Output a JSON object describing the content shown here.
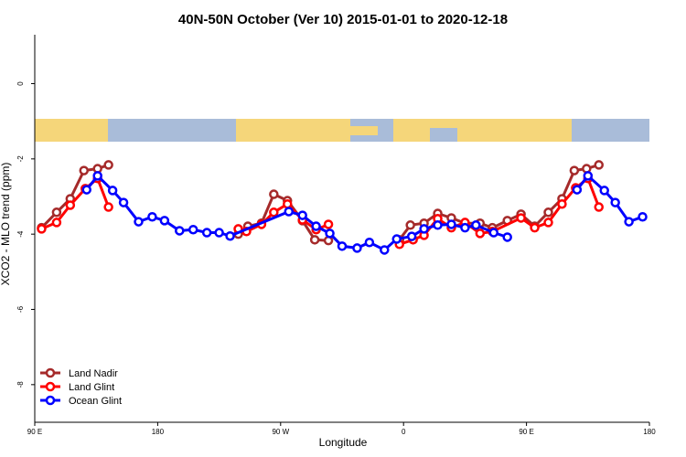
{
  "chart_data": {
    "type": "line",
    "title": "40N-50N October (Ver 10)   2015-01-01 to 2020-12-18",
    "xlabel": "Longitude",
    "ylabel": "XCO2 - MLO trend (ppm)",
    "xlim": [
      90,
      540
    ],
    "ylim": [
      -9.0,
      1.3
    ],
    "xticks": [
      {
        "value": 90,
        "label": "90 E"
      },
      {
        "value": 180,
        "label": "180"
      },
      {
        "value": 270,
        "label": "90 W"
      },
      {
        "value": 360,
        "label": "0"
      },
      {
        "value": 450,
        "label": "90 E"
      },
      {
        "value": 540,
        "label": "180"
      }
    ],
    "yticks": [
      -8,
      -6,
      -4,
      -2,
      0
    ],
    "legend": "bottom-left",
    "series": [
      {
        "name": "Land Nadir",
        "color": "#a52a2a",
        "x": [
          95,
          106,
          116,
          126,
          136,
          144,
          null,
          239,
          246,
          256,
          265,
          275,
          286,
          295,
          305,
          null,
          357,
          365,
          375,
          385,
          395,
          405,
          416,
          425,
          436,
          446,
          456,
          466,
          476,
          485,
          494,
          503
        ],
        "values": [
          -3.83,
          -3.42,
          -3.06,
          -2.31,
          -2.26,
          -2.16,
          null,
          -4.0,
          -3.79,
          -3.71,
          -2.94,
          -3.11,
          -3.64,
          -4.15,
          -4.17,
          null,
          -4.15,
          -3.76,
          -3.71,
          -3.45,
          -3.57,
          -3.71,
          -3.71,
          -3.83,
          -3.64,
          -3.47,
          -3.79,
          -3.42,
          -3.06,
          -2.31,
          -2.26,
          -2.16
        ]
      },
      {
        "name": "Land Glint",
        "color": "#ff0000",
        "x": [
          95,
          106,
          116,
          127,
          136,
          144,
          null,
          239,
          245,
          256,
          265,
          275,
          286,
          296,
          305,
          null,
          357,
          367,
          375,
          385,
          395,
          405,
          416,
          425,
          446,
          456,
          466,
          476,
          486,
          495,
          503
        ],
        "values": [
          -3.86,
          -3.69,
          -3.23,
          -2.79,
          -2.52,
          -3.28,
          null,
          -3.86,
          -3.93,
          -3.74,
          -3.42,
          -3.2,
          -3.62,
          -3.88,
          -3.74,
          null,
          -4.27,
          -4.15,
          -4.03,
          -3.59,
          -3.83,
          -3.69,
          -3.98,
          -3.93,
          -3.57,
          -3.83,
          -3.69,
          -3.2,
          -2.77,
          -2.52,
          -3.28
        ]
      },
      {
        "name": "Ocean Glint",
        "color": "#0000ff",
        "x": [
          128,
          136,
          147,
          155,
          166,
          176,
          185,
          196,
          206,
          216,
          225,
          233,
          276,
          286,
          296,
          306,
          315,
          326,
          335,
          346,
          355,
          366,
          375,
          385,
          395,
          405,
          413,
          426,
          436,
          null,
          487,
          495,
          507,
          515,
          525,
          535
        ],
        "values": [
          -2.82,
          -2.45,
          -2.84,
          -3.16,
          -3.67,
          -3.54,
          -3.64,
          -3.91,
          -3.88,
          -3.96,
          -3.96,
          -4.05,
          -3.4,
          -3.5,
          -3.79,
          -3.98,
          -4.32,
          -4.37,
          -4.22,
          -4.42,
          -4.13,
          -4.06,
          -3.86,
          -3.76,
          -3.74,
          -3.83,
          -3.76,
          -3.96,
          -4.08,
          null,
          -2.82,
          -2.45,
          -2.84,
          -3.16,
          -3.67,
          -3.54
        ]
      }
    ]
  }
}
